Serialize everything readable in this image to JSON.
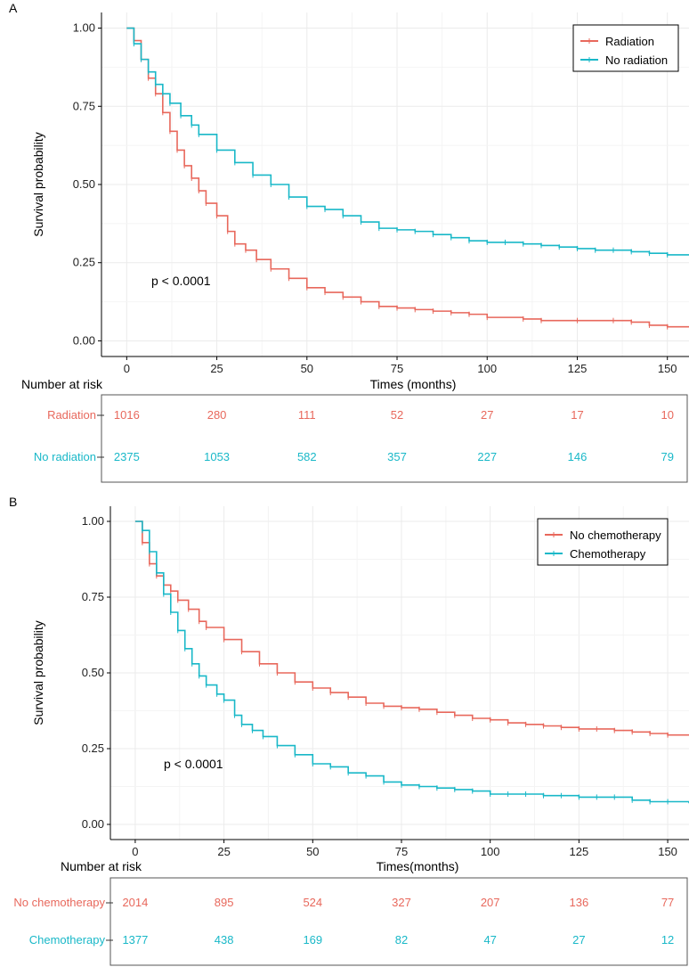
{
  "chart_data": [
    {
      "type": "line",
      "panel": "A",
      "xlabel": "Times (months)",
      "ylabel": "Survival probability",
      "xlim": [
        -7,
        156
      ],
      "ylim": [
        -0.05,
        1.05
      ],
      "x_ticks": [
        0,
        25,
        50,
        75,
        100,
        125,
        150
      ],
      "y_ticks": [
        0.0,
        0.25,
        0.5,
        0.75,
        1.0
      ],
      "y_tick_labels": [
        "0.00",
        "0.25",
        "0.50",
        "0.75",
        "1.00"
      ],
      "grid": true,
      "legend_position": "top-right",
      "annotation": "p < 0.0001",
      "series": [
        {
          "name": "Radiation",
          "color": "#e8685c",
          "points": [
            [
              0,
              1.0
            ],
            [
              2,
              0.96
            ],
            [
              4,
              0.9
            ],
            [
              6,
              0.84
            ],
            [
              8,
              0.79
            ],
            [
              10,
              0.73
            ],
            [
              12,
              0.67
            ],
            [
              14,
              0.61
            ],
            [
              16,
              0.56
            ],
            [
              18,
              0.52
            ],
            [
              20,
              0.48
            ],
            [
              22,
              0.44
            ],
            [
              25,
              0.4
            ],
            [
              28,
              0.35
            ],
            [
              30,
              0.31
            ],
            [
              33,
              0.29
            ],
            [
              36,
              0.26
            ],
            [
              40,
              0.23
            ],
            [
              45,
              0.2
            ],
            [
              50,
              0.17
            ],
            [
              55,
              0.155
            ],
            [
              60,
              0.14
            ],
            [
              65,
              0.125
            ],
            [
              70,
              0.11
            ],
            [
              75,
              0.105
            ],
            [
              80,
              0.1
            ],
            [
              85,
              0.095
            ],
            [
              90,
              0.09
            ],
            [
              95,
              0.085
            ],
            [
              100,
              0.075
            ],
            [
              110,
              0.07
            ],
            [
              115,
              0.065
            ],
            [
              125,
              0.065
            ],
            [
              135,
              0.065
            ],
            [
              140,
              0.06
            ],
            [
              145,
              0.05
            ],
            [
              150,
              0.045
            ],
            [
              156,
              0.045
            ]
          ]
        },
        {
          "name": "No radiation",
          "color": "#19b8c8",
          "points": [
            [
              0,
              1.0
            ],
            [
              2,
              0.95
            ],
            [
              4,
              0.9
            ],
            [
              6,
              0.86
            ],
            [
              8,
              0.82
            ],
            [
              10,
              0.79
            ],
            [
              12,
              0.76
            ],
            [
              15,
              0.72
            ],
            [
              18,
              0.69
            ],
            [
              20,
              0.66
            ],
            [
              25,
              0.61
            ],
            [
              30,
              0.57
            ],
            [
              35,
              0.53
            ],
            [
              40,
              0.5
            ],
            [
              45,
              0.46
            ],
            [
              50,
              0.43
            ],
            [
              55,
              0.42
            ],
            [
              60,
              0.4
            ],
            [
              65,
              0.38
            ],
            [
              70,
              0.36
            ],
            [
              75,
              0.355
            ],
            [
              80,
              0.35
            ],
            [
              85,
              0.34
            ],
            [
              90,
              0.33
            ],
            [
              95,
              0.32
            ],
            [
              100,
              0.315
            ],
            [
              105,
              0.315
            ],
            [
              110,
              0.31
            ],
            [
              115,
              0.305
            ],
            [
              120,
              0.3
            ],
            [
              125,
              0.295
            ],
            [
              130,
              0.29
            ],
            [
              135,
              0.29
            ],
            [
              140,
              0.285
            ],
            [
              145,
              0.28
            ],
            [
              150,
              0.275
            ],
            [
              156,
              0.275
            ]
          ]
        }
      ],
      "risk_table": {
        "title": "Number at risk",
        "times": [
          0,
          25,
          50,
          75,
          100,
          125,
          150
        ],
        "rows": [
          {
            "name": "Radiation",
            "color": "#e8685c",
            "values": [
              "1016",
              "280",
              "111",
              "52",
              "27",
              "17",
              "10"
            ]
          },
          {
            "name": "No radiation",
            "color": "#19b8c8",
            "values": [
              "2375",
              "1053",
              "582",
              "357",
              "227",
              "146",
              "79"
            ]
          }
        ]
      }
    },
    {
      "type": "line",
      "panel": "B",
      "xlabel": "Times(months)",
      "ylabel": "Survival probability",
      "xlim": [
        -7,
        156
      ],
      "ylim": [
        -0.05,
        1.05
      ],
      "x_ticks": [
        0,
        25,
        50,
        75,
        100,
        125,
        150
      ],
      "y_ticks": [
        0.0,
        0.25,
        0.5,
        0.75,
        1.0
      ],
      "y_tick_labels": [
        "0.00",
        "0.25",
        "0.50",
        "0.75",
        "1.00"
      ],
      "grid": true,
      "legend_position": "top-right",
      "annotation": "p < 0.0001",
      "series": [
        {
          "name": "No chemotherapy",
          "color": "#e8685c",
          "points": [
            [
              0,
              1.0
            ],
            [
              2,
              0.93
            ],
            [
              4,
              0.86
            ],
            [
              6,
              0.82
            ],
            [
              8,
              0.79
            ],
            [
              10,
              0.77
            ],
            [
              12,
              0.74
            ],
            [
              15,
              0.71
            ],
            [
              18,
              0.67
            ],
            [
              20,
              0.65
            ],
            [
              25,
              0.61
            ],
            [
              30,
              0.57
            ],
            [
              35,
              0.53
            ],
            [
              40,
              0.5
            ],
            [
              45,
              0.47
            ],
            [
              50,
              0.45
            ],
            [
              55,
              0.435
            ],
            [
              60,
              0.42
            ],
            [
              65,
              0.4
            ],
            [
              70,
              0.39
            ],
            [
              75,
              0.385
            ],
            [
              80,
              0.38
            ],
            [
              85,
              0.37
            ],
            [
              90,
              0.36
            ],
            [
              95,
              0.35
            ],
            [
              100,
              0.345
            ],
            [
              105,
              0.335
            ],
            [
              110,
              0.33
            ],
            [
              115,
              0.325
            ],
            [
              120,
              0.32
            ],
            [
              125,
              0.315
            ],
            [
              130,
              0.315
            ],
            [
              135,
              0.31
            ],
            [
              140,
              0.305
            ],
            [
              145,
              0.3
            ],
            [
              150,
              0.295
            ],
            [
              156,
              0.295
            ]
          ]
        },
        {
          "name": "Chemotherapy",
          "color": "#19b8c8",
          "points": [
            [
              0,
              1.0
            ],
            [
              2,
              0.97
            ],
            [
              4,
              0.9
            ],
            [
              6,
              0.83
            ],
            [
              8,
              0.76
            ],
            [
              10,
              0.7
            ],
            [
              12,
              0.64
            ],
            [
              14,
              0.58
            ],
            [
              16,
              0.53
            ],
            [
              18,
              0.49
            ],
            [
              20,
              0.46
            ],
            [
              23,
              0.43
            ],
            [
              25,
              0.41
            ],
            [
              28,
              0.36
            ],
            [
              30,
              0.33
            ],
            [
              33,
              0.31
            ],
            [
              36,
              0.29
            ],
            [
              40,
              0.26
            ],
            [
              45,
              0.23
            ],
            [
              50,
              0.2
            ],
            [
              55,
              0.19
            ],
            [
              60,
              0.17
            ],
            [
              65,
              0.16
            ],
            [
              70,
              0.14
            ],
            [
              75,
              0.13
            ],
            [
              80,
              0.125
            ],
            [
              85,
              0.12
            ],
            [
              90,
              0.115
            ],
            [
              95,
              0.11
            ],
            [
              100,
              0.1
            ],
            [
              105,
              0.1
            ],
            [
              110,
              0.1
            ],
            [
              115,
              0.095
            ],
            [
              120,
              0.095
            ],
            [
              125,
              0.09
            ],
            [
              130,
              0.09
            ],
            [
              135,
              0.09
            ],
            [
              140,
              0.08
            ],
            [
              145,
              0.075
            ],
            [
              150,
              0.075
            ],
            [
              156,
              0.07
            ]
          ]
        }
      ],
      "risk_table": {
        "title": "Number at risk",
        "times": [
          0,
          25,
          50,
          75,
          100,
          125,
          150
        ],
        "rows": [
          {
            "name": "No chemotherapy",
            "color": "#e8685c",
            "values": [
              "2014",
              "895",
              "524",
              "327",
              "207",
              "136",
              "77"
            ]
          },
          {
            "name": "Chemotherapy",
            "color": "#19b8c8",
            "values": [
              "1377",
              "438",
              "169",
              "82",
              "47",
              "27",
              "12"
            ]
          }
        ]
      }
    }
  ]
}
